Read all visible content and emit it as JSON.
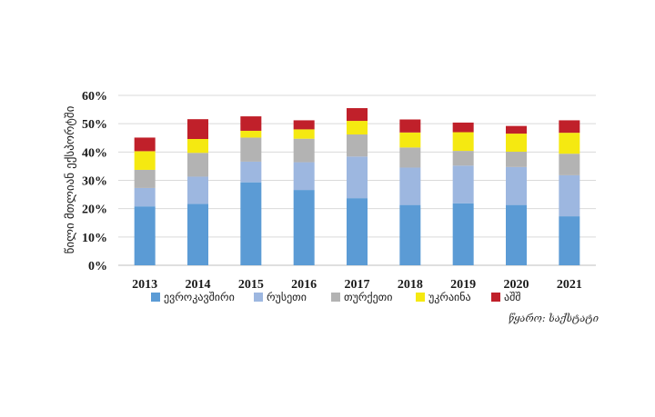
{
  "chart_data": {
    "type": "bar",
    "stacked": true,
    "categories": [
      "2013",
      "2014",
      "2015",
      "2016",
      "2017",
      "2018",
      "2019",
      "2020",
      "2021"
    ],
    "series": [
      {
        "name": "ევროკავშირი",
        "color": "#5B9BD5",
        "values": [
          20.8,
          21.7,
          29.3,
          26.6,
          23.7,
          21.3,
          21.9,
          21.3,
          17.3
        ]
      },
      {
        "name": "რუსეთი",
        "color": "#9DB7E0",
        "values": [
          6.5,
          9.6,
          7.3,
          9.8,
          14.7,
          13.2,
          13.3,
          13.4,
          14.5
        ]
      },
      {
        "name": "თურქეთი",
        "color": "#B3B3B3",
        "values": [
          6.4,
          8.4,
          8.5,
          8.3,
          7.8,
          7.1,
          5.2,
          5.4,
          7.6
        ]
      },
      {
        "name": "უკრაინა",
        "color": "#F5E911",
        "values": [
          6.6,
          4.9,
          2.4,
          3.3,
          4.8,
          5.3,
          6.6,
          6.4,
          7.4
        ]
      },
      {
        "name": "აშშ",
        "color": "#C0202A",
        "values": [
          4.8,
          7.0,
          5.1,
          3.2,
          4.5,
          4.6,
          3.4,
          2.7,
          4.4
        ]
      }
    ],
    "ylabel": "წილი მთლიან ექსპორტში",
    "yticks": [
      "0%",
      "10%",
      "20%",
      "30%",
      "40%",
      "50%",
      "60%"
    ],
    "ylim": [
      0,
      60
    ],
    "grid": true,
    "legend": "bottom",
    "source": "წყარო: საქსტატი"
  }
}
